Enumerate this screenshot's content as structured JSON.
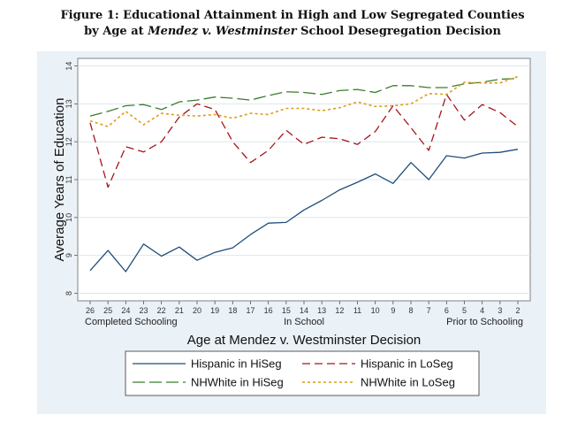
{
  "title": {
    "line1": "Figure 1: Educational Attainment in High and Low Segregated Counties",
    "line2_prefix": "by Age at ",
    "line2_italic": "Mendez v. Westminster",
    "line2_suffix": " School Desegregation Decision"
  },
  "colors": {
    "panel_bg": "#eaf1f7",
    "plot_bg": "#ffffff",
    "hispanic_hiseg": "#1f4e79",
    "hispanic_loseg": "#a4161a",
    "nhwhite_hiseg": "#3a7d2c",
    "nhwhite_loseg": "#e09b1a",
    "grid": "#d6e2ec"
  },
  "chart_data": {
    "type": "line",
    "xlabel": "Age at Mendez v. Westminster Decision",
    "ylabel": "Average Years of Education",
    "x": [
      26,
      25,
      24,
      23,
      22,
      21,
      20,
      19,
      18,
      17,
      16,
      15,
      14,
      13,
      12,
      11,
      10,
      9,
      8,
      7,
      6,
      5,
      4,
      3,
      2
    ],
    "x_reversed": true,
    "xlim": [
      26,
      2
    ],
    "ylim": [
      7.8,
      14.2
    ],
    "yticks": [
      8,
      9,
      10,
      11,
      12,
      13,
      14
    ],
    "x_annotations": [
      {
        "x": 26,
        "label": "Completed Schooling",
        "anchor": "start"
      },
      {
        "x": 14,
        "label": "In School",
        "anchor": "middle"
      },
      {
        "x": 2,
        "label": "Prior to Schooling",
        "anchor": "end"
      }
    ],
    "grid": true,
    "legend_position": "bottom",
    "series": [
      {
        "name": "Hispanic in HiSeg",
        "style": "solid",
        "values": [
          8.6,
          9.13,
          8.57,
          9.3,
          8.98,
          9.22,
          8.87,
          9.08,
          9.2,
          9.55,
          9.85,
          9.87,
          10.2,
          10.45,
          10.73,
          10.93,
          11.15,
          10.9,
          11.45,
          11.0,
          11.63,
          11.57,
          11.7,
          11.72,
          11.8
        ]
      },
      {
        "name": "Hispanic in LoSeg",
        "style": "longdash",
        "values": [
          12.5,
          10.8,
          11.87,
          11.73,
          12.0,
          12.65,
          13.0,
          12.85,
          12.0,
          11.45,
          11.77,
          12.3,
          11.93,
          12.12,
          12.08,
          11.93,
          12.27,
          12.95,
          12.37,
          11.77,
          13.25,
          12.57,
          12.98,
          12.77,
          12.4
        ]
      },
      {
        "name": "NHWhite in HiSeg",
        "style": "dash",
        "values": [
          12.68,
          12.8,
          12.95,
          12.98,
          12.85,
          13.05,
          13.1,
          13.18,
          13.15,
          13.1,
          13.22,
          13.32,
          13.3,
          13.25,
          13.35,
          13.38,
          13.3,
          13.48,
          13.48,
          13.43,
          13.43,
          13.53,
          13.57,
          13.65,
          13.67
        ]
      },
      {
        "name": "NHWhite in LoSeg",
        "style": "shortdash",
        "values": [
          12.55,
          12.4,
          12.8,
          12.45,
          12.75,
          12.7,
          12.68,
          12.72,
          12.62,
          12.75,
          12.72,
          12.88,
          12.88,
          12.82,
          12.9,
          13.05,
          12.93,
          12.95,
          13.0,
          13.27,
          13.25,
          13.57,
          13.55,
          13.55,
          13.72
        ]
      }
    ]
  }
}
